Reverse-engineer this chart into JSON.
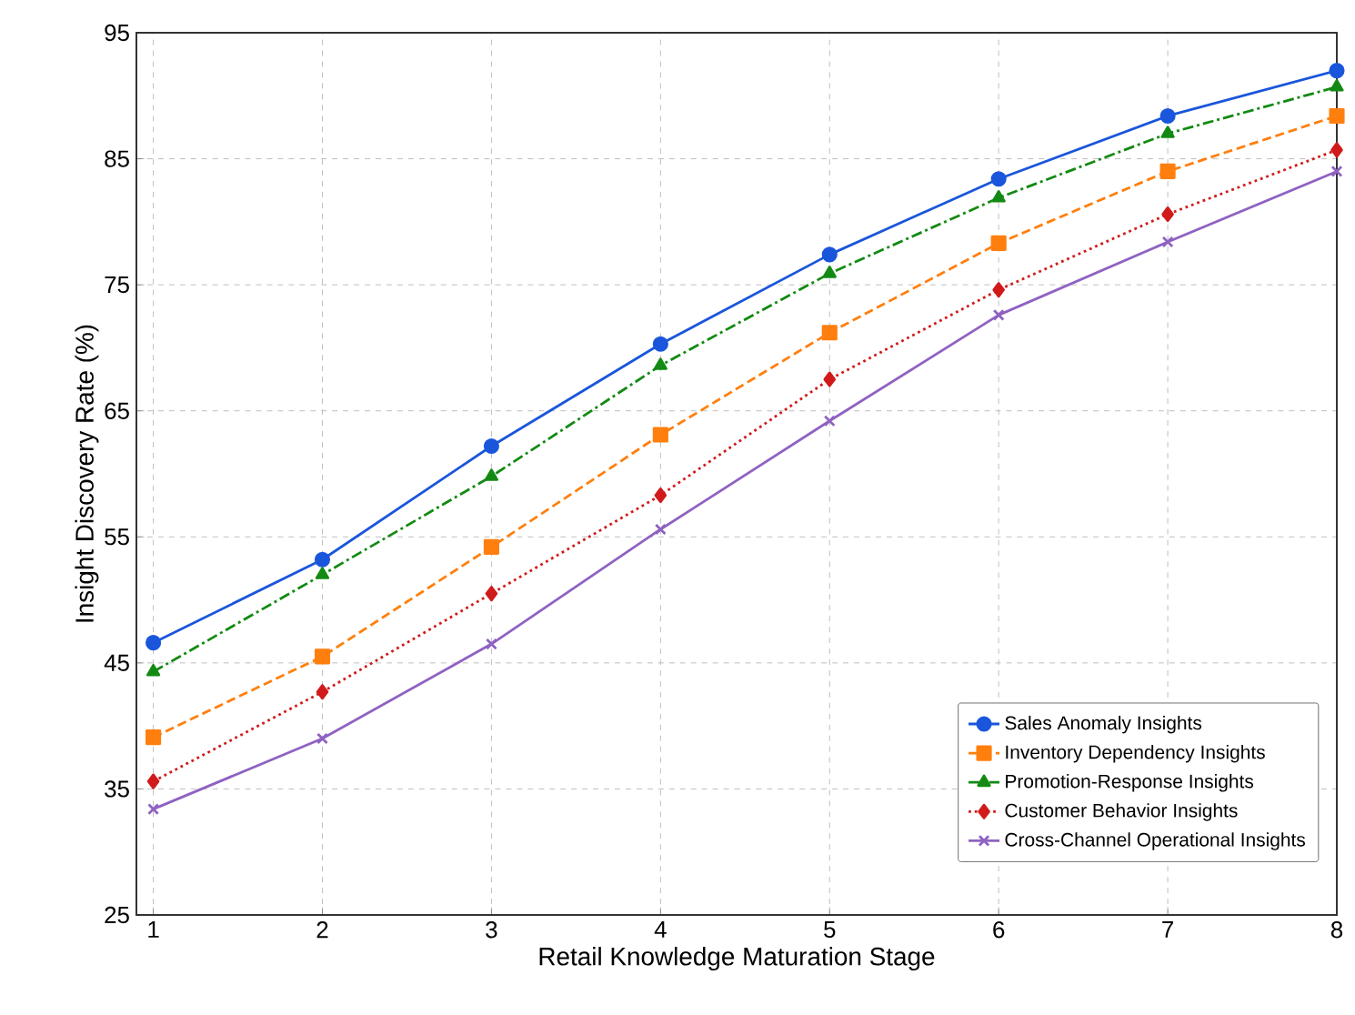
{
  "chart_data": {
    "type": "line",
    "xlabel": "Retail Knowledge Maturation Stage",
    "ylabel": "Insight Discovery Rate (%)",
    "x": [
      1,
      2,
      3,
      4,
      5,
      6,
      7,
      8
    ],
    "xlim": [
      0.9,
      8
    ],
    "xticks": [
      1,
      2,
      3,
      4,
      5,
      6,
      7,
      8
    ],
    "ylim": [
      25,
      95
    ],
    "yticks": [
      25,
      35,
      45,
      55,
      65,
      75,
      85,
      95
    ],
    "grid": true,
    "legend": "bottom right",
    "series": [
      {
        "name": "Sales Anomaly Insights",
        "color": "#1a56db",
        "marker": "circle",
        "line_style": "solid",
        "values": [
          46.6,
          53.2,
          62.2,
          70.3,
          77.4,
          83.4,
          88.4,
          92.0
        ]
      },
      {
        "name": "Inventory Dependency Insights",
        "color": "#ff7f0e",
        "marker": "square",
        "line_style": "dashed",
        "values": [
          39.1,
          45.5,
          54.2,
          63.1,
          71.2,
          78.3,
          84.0,
          88.4
        ]
      },
      {
        "name": "Promotion-Response Insights",
        "color": "#138a13",
        "marker": "triangle",
        "line_style": "dashdot",
        "values": [
          44.3,
          52.0,
          59.8,
          68.6,
          75.9,
          81.9,
          87.0,
          90.7
        ]
      },
      {
        "name": "Customer Behavior Insights",
        "color": "#d11a1a",
        "marker": "diamond",
        "line_style": "dotted",
        "values": [
          35.6,
          42.7,
          50.5,
          58.3,
          67.5,
          74.6,
          80.6,
          85.7
        ]
      },
      {
        "name": "Cross-Channel Operational Insights",
        "color": "#8f62c2",
        "marker": "cross",
        "line_style": "solid",
        "values": [
          33.4,
          39.0,
          46.5,
          55.6,
          64.2,
          72.6,
          78.4,
          84.0
        ]
      }
    ]
  }
}
